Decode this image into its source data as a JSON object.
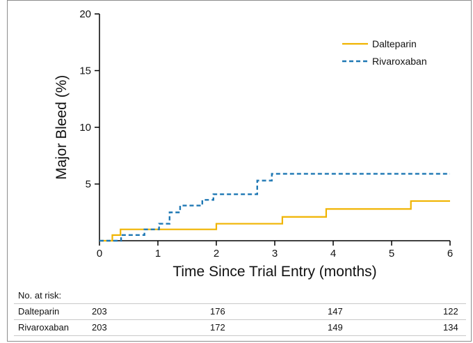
{
  "chart_data": {
    "type": "line",
    "title": "",
    "xlabel": "Time Since Trial Entry (months)",
    "ylabel": "Major Bleed (%)",
    "xlim": [
      0,
      6
    ],
    "ylim": [
      0,
      20
    ],
    "x_ticks": [
      0,
      1,
      2,
      3,
      4,
      5,
      6
    ],
    "y_ticks": [
      5,
      10,
      15,
      20
    ],
    "grid": false,
    "legend_position": "top-right",
    "colors": {
      "dalteparin": "#f0b400",
      "rivaroxaban": "#1f78b4",
      "axis": "#000000"
    },
    "series": [
      {
        "name": "Dalteparin",
        "style": "solid",
        "color": "#f0b400",
        "points": [
          [
            0,
            0
          ],
          [
            0.22,
            0.5
          ],
          [
            0.36,
            1.0
          ],
          [
            2.0,
            1.5
          ],
          [
            3.13,
            2.1
          ],
          [
            3.88,
            2.8
          ],
          [
            5.33,
            3.5
          ],
          [
            6.0,
            3.5
          ]
        ]
      },
      {
        "name": "Rivaroxaban",
        "style": "dashed",
        "color": "#1f78b4",
        "points": [
          [
            0,
            0
          ],
          [
            0.37,
            0.5
          ],
          [
            0.77,
            1.0
          ],
          [
            1.02,
            1.5
          ],
          [
            1.2,
            2.5
          ],
          [
            1.38,
            3.1
          ],
          [
            1.76,
            3.6
          ],
          [
            1.95,
            4.1
          ],
          [
            2.7,
            5.3
          ],
          [
            2.95,
            5.9
          ],
          [
            6.0,
            5.9
          ]
        ]
      }
    ]
  },
  "risk_table": {
    "header": "No. at risk:",
    "rows": [
      {
        "label": "Dalteparin",
        "values": [
          "203",
          "176",
          "147",
          "122"
        ]
      },
      {
        "label": "Rivaroxaban",
        "values": [
          "203",
          "172",
          "149",
          "134"
        ]
      }
    ]
  }
}
